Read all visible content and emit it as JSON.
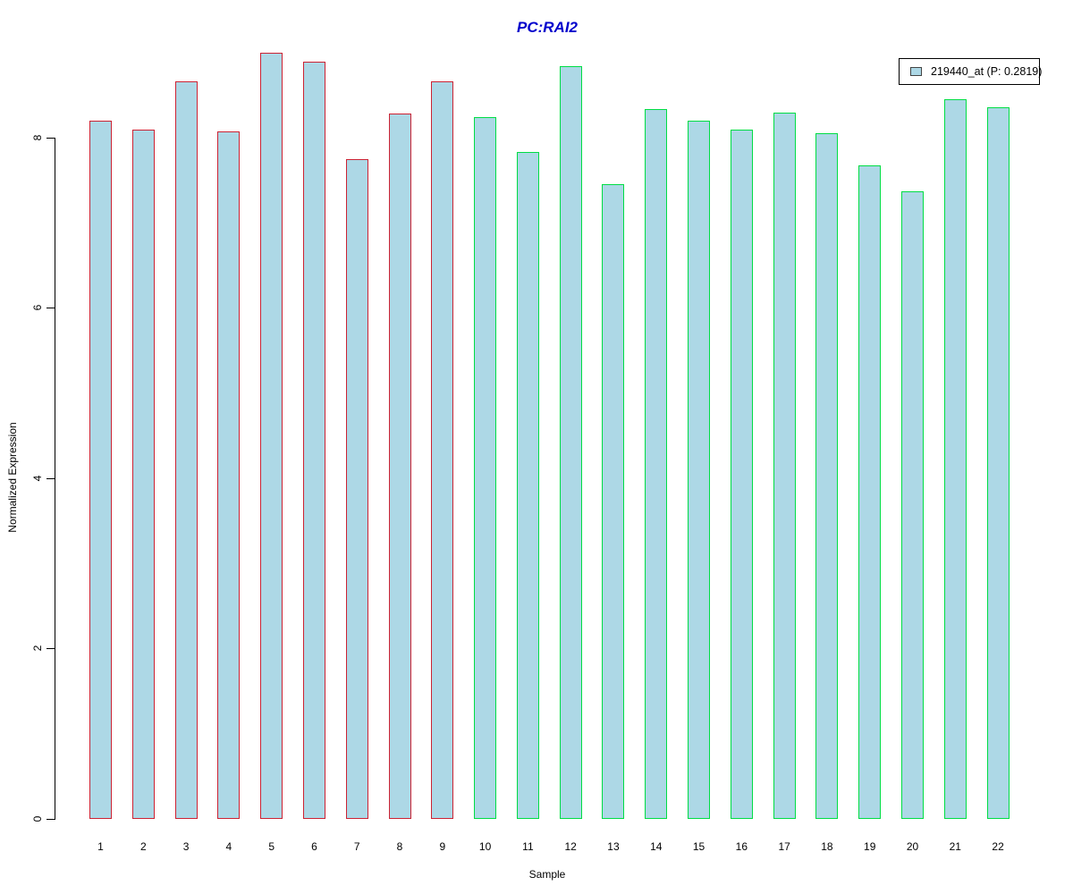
{
  "chart_data": {
    "type": "bar",
    "title": "PC:RAI2",
    "title_color": "#0000cc",
    "xlabel": "Sample",
    "ylabel": "Normalized Expression",
    "categories": [
      "1",
      "2",
      "3",
      "4",
      "5",
      "6",
      "7",
      "8",
      "9",
      "10",
      "11",
      "12",
      "13",
      "14",
      "15",
      "16",
      "17",
      "18",
      "19",
      "20",
      "21",
      "22"
    ],
    "values": [
      8.2,
      8.09,
      8.66,
      8.07,
      8.99,
      8.89,
      7.74,
      8.28,
      8.66,
      8.24,
      7.83,
      8.84,
      7.45,
      8.33,
      8.2,
      8.09,
      8.29,
      8.05,
      7.67,
      7.37,
      8.45,
      8.35
    ],
    "groups": [
      "group1",
      "group1",
      "group1",
      "group1",
      "group1",
      "group1",
      "group1",
      "group1",
      "group1",
      "group2",
      "group2",
      "group2",
      "group2",
      "group2",
      "group2",
      "group2",
      "group2",
      "group2",
      "group2",
      "group2",
      "group2",
      "group2"
    ],
    "group_colors": {
      "group1": "#cc2233",
      "group2": "#00dd44"
    },
    "bar_fill": "#ADD8E6",
    "yticks": [
      0,
      2,
      4,
      6,
      8
    ],
    "ylim": [
      0,
      9.2
    ],
    "grid": false,
    "legend": {
      "label": "219440_at (P: 0.2819)",
      "position": "top-right",
      "swatch_fill": "#ADD8E6"
    }
  }
}
